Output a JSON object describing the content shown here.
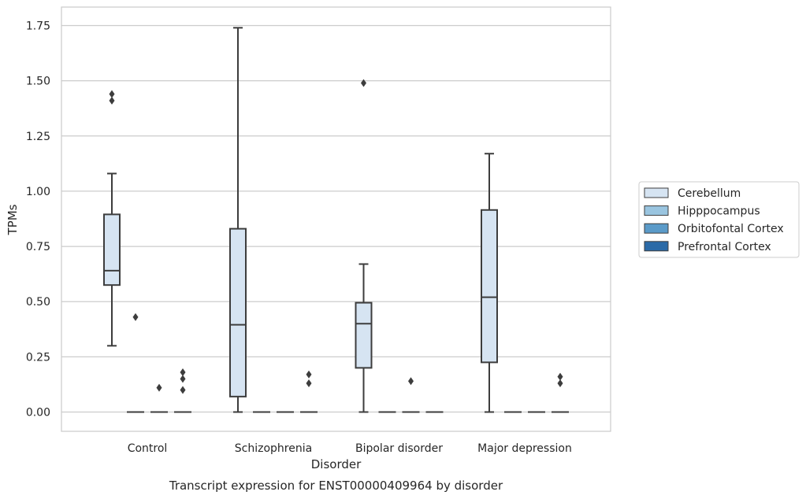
{
  "chart_data": {
    "type": "box",
    "title": "",
    "caption": "Transcript expression for ENST00000409964 by disorder",
    "xlabel": "Disorder",
    "ylabel": "TPMs",
    "ylim": [
      -0.085,
      1.83
    ],
    "yticks": [
      0.0,
      0.25,
      0.5,
      0.75,
      1.0,
      1.25,
      1.5,
      1.75
    ],
    "ytick_labels": [
      "0.00",
      "0.25",
      "0.50",
      "0.75",
      "1.00",
      "1.25",
      "1.50",
      "1.75"
    ],
    "grid": true,
    "legend_position": "right",
    "categories": [
      "Control",
      "Schizophrenia",
      "Bipolar disorder",
      "Major depression"
    ],
    "series": [
      {
        "name": "Cerebellum",
        "color": "#d6e4f2",
        "boxes": [
          {
            "whisker_low": 0.3,
            "q1": 0.575,
            "median": 0.64,
            "q3": 0.895,
            "whisker_high": 1.08,
            "outliers": [
              1.41,
              1.44
            ]
          },
          {
            "whisker_low": 0.0,
            "q1": 0.07,
            "median": 0.395,
            "q3": 0.83,
            "whisker_high": 1.74,
            "outliers": []
          },
          {
            "whisker_low": 0.0,
            "q1": 0.2,
            "median": 0.4,
            "q3": 0.495,
            "whisker_high": 0.67,
            "outliers": [
              1.49
            ]
          },
          {
            "whisker_low": 0.0,
            "q1": 0.225,
            "median": 0.52,
            "q3": 0.915,
            "whisker_high": 1.17,
            "outliers": []
          }
        ]
      },
      {
        "name": "Hipppocampus",
        "color": "#9ac5e0",
        "boxes": [
          {
            "whisker_low": 0.0,
            "q1": 0.0,
            "median": 0.0,
            "q3": 0.0,
            "whisker_high": 0.0,
            "outliers": [
              0.43
            ]
          },
          {
            "whisker_low": 0.0,
            "q1": 0.0,
            "median": 0.0,
            "q3": 0.0,
            "whisker_high": 0.0,
            "outliers": []
          },
          {
            "whisker_low": 0.0,
            "q1": 0.0,
            "median": 0.0,
            "q3": 0.0,
            "whisker_high": 0.0,
            "outliers": []
          },
          {
            "whisker_low": 0.0,
            "q1": 0.0,
            "median": 0.0,
            "q3": 0.0,
            "whisker_high": 0.0,
            "outliers": []
          }
        ]
      },
      {
        "name": "Orbitofontal Cortex",
        "color": "#5b9bc9",
        "boxes": [
          {
            "whisker_low": 0.0,
            "q1": 0.0,
            "median": 0.0,
            "q3": 0.0,
            "whisker_high": 0.0,
            "outliers": [
              0.11
            ]
          },
          {
            "whisker_low": 0.0,
            "q1": 0.0,
            "median": 0.0,
            "q3": 0.0,
            "whisker_high": 0.0,
            "outliers": []
          },
          {
            "whisker_low": 0.0,
            "q1": 0.0,
            "median": 0.0,
            "q3": 0.0,
            "whisker_high": 0.0,
            "outliers": [
              0.14
            ]
          },
          {
            "whisker_low": 0.0,
            "q1": 0.0,
            "median": 0.0,
            "q3": 0.0,
            "whisker_high": 0.0,
            "outliers": []
          }
        ]
      },
      {
        "name": "Prefrontal Cortex",
        "color": "#2b6aa7",
        "boxes": [
          {
            "whisker_low": 0.0,
            "q1": 0.0,
            "median": 0.0,
            "q3": 0.0,
            "whisker_high": 0.0,
            "outliers": [
              0.1,
              0.15,
              0.18
            ]
          },
          {
            "whisker_low": 0.0,
            "q1": 0.0,
            "median": 0.0,
            "q3": 0.0,
            "whisker_high": 0.0,
            "outliers": [
              0.13,
              0.17
            ]
          },
          {
            "whisker_low": 0.0,
            "q1": 0.0,
            "median": 0.0,
            "q3": 0.0,
            "whisker_high": 0.0,
            "outliers": []
          },
          {
            "whisker_low": 0.0,
            "q1": 0.0,
            "median": 0.0,
            "q3": 0.0,
            "whisker_high": 0.0,
            "outliers": [
              0.13,
              0.16
            ]
          }
        ]
      }
    ]
  },
  "colors": {
    "grid": "#cccccc",
    "spine": "#cccccc",
    "line": "#3d3d3d",
    "outlier": "#3d3d3d",
    "text": "#262626"
  }
}
